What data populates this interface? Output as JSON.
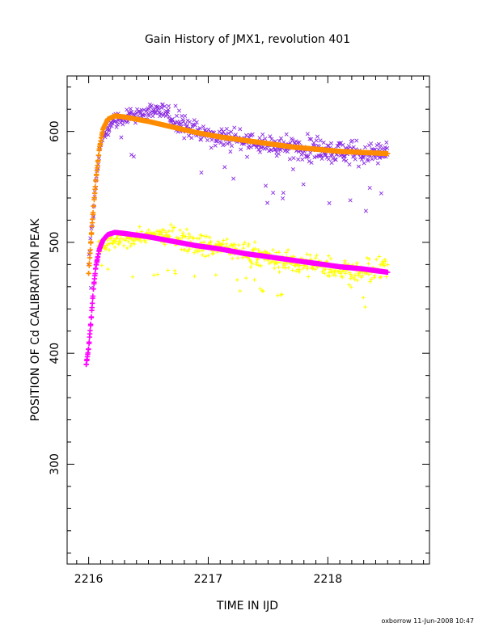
{
  "chart_data": {
    "type": "scatter",
    "title": "Gain History of JMX1, revolution 401",
    "xlabel": "TIME IN IJD",
    "ylabel": "POSITION OF Cd CALIBRATION PEAK",
    "xlim": [
      2215.82,
      2218.85
    ],
    "ylim": [
      210,
      650
    ],
    "x_ticks": [
      2216,
      2217,
      2218
    ],
    "x_tick_labels": [
      "2216",
      "2217",
      "2218"
    ],
    "y_ticks": [
      300,
      400,
      500,
      600
    ],
    "y_tick_labels": [
      "300",
      "400",
      "500",
      "600"
    ],
    "grid": false,
    "footer": "oxborrow 11-Jun-2008 10:47",
    "colors": {
      "upper_scatter": "#8a2be2",
      "upper_fit": "#ff8c00",
      "lower_scatter": "#ffff00",
      "lower_fit": "#ff00ff",
      "axes": "#000000"
    },
    "series": [
      {
        "role": "upper-measured",
        "marker": "x",
        "color": "#8a2be2",
        "x_range": [
          2216.0,
          2218.5
        ],
        "approx_points": [
          [
            2216.0,
            480
          ],
          [
            2216.05,
            540
          ],
          [
            2216.1,
            590
          ],
          [
            2216.2,
            610
          ],
          [
            2216.4,
            615
          ],
          [
            2216.6,
            620
          ],
          [
            2216.8,
            605
          ],
          [
            2217.0,
            597
          ],
          [
            2217.3,
            592
          ],
          [
            2217.6,
            586
          ],
          [
            2218.0,
            583
          ],
          [
            2218.3,
            580
          ],
          [
            2218.5,
            580
          ]
        ]
      },
      {
        "role": "upper-model",
        "marker": "+",
        "color": "#ff8c00",
        "points": [
          [
            2216.0,
            472
          ],
          [
            2216.03,
            518
          ],
          [
            2216.06,
            556
          ],
          [
            2216.09,
            585
          ],
          [
            2216.12,
            602
          ],
          [
            2216.16,
            611
          ],
          [
            2216.22,
            614
          ],
          [
            2216.3,
            613
          ],
          [
            2216.5,
            609
          ],
          [
            2216.7,
            604
          ],
          [
            2216.9,
            599
          ],
          [
            2217.1,
            595
          ],
          [
            2217.3,
            592
          ],
          [
            2217.5,
            589
          ],
          [
            2217.7,
            586
          ],
          [
            2217.9,
            584
          ],
          [
            2218.1,
            582
          ],
          [
            2218.3,
            581
          ],
          [
            2218.5,
            580
          ]
        ]
      },
      {
        "role": "lower-measured",
        "marker": "+",
        "color": "#ffff00",
        "x_range": [
          2216.0,
          2218.5
        ],
        "approx_points": [
          [
            2216.1,
            495
          ],
          [
            2216.2,
            500
          ],
          [
            2216.4,
            505
          ],
          [
            2216.6,
            507
          ],
          [
            2216.8,
            503
          ],
          [
            2217.0,
            497
          ],
          [
            2217.3,
            492
          ],
          [
            2217.6,
            483
          ],
          [
            2218.0,
            478
          ],
          [
            2218.3,
            472
          ],
          [
            2218.5,
            477
          ]
        ]
      },
      {
        "role": "lower-model",
        "marker": "+",
        "color": "#ff00ff",
        "points": [
          [
            2215.98,
            390
          ],
          [
            2216.0,
            405
          ],
          [
            2216.02,
            430
          ],
          [
            2216.04,
            458
          ],
          [
            2216.06,
            478
          ],
          [
            2216.09,
            494
          ],
          [
            2216.12,
            502
          ],
          [
            2216.16,
            507
          ],
          [
            2216.22,
            509
          ],
          [
            2216.3,
            508
          ],
          [
            2216.5,
            505
          ],
          [
            2216.7,
            501
          ],
          [
            2216.9,
            497
          ],
          [
            2217.1,
            494
          ],
          [
            2217.3,
            490
          ],
          [
            2217.5,
            487
          ],
          [
            2217.7,
            484
          ],
          [
            2217.9,
            481
          ],
          [
            2218.1,
            478
          ],
          [
            2218.3,
            476
          ],
          [
            2218.5,
            473
          ]
        ]
      }
    ]
  }
}
